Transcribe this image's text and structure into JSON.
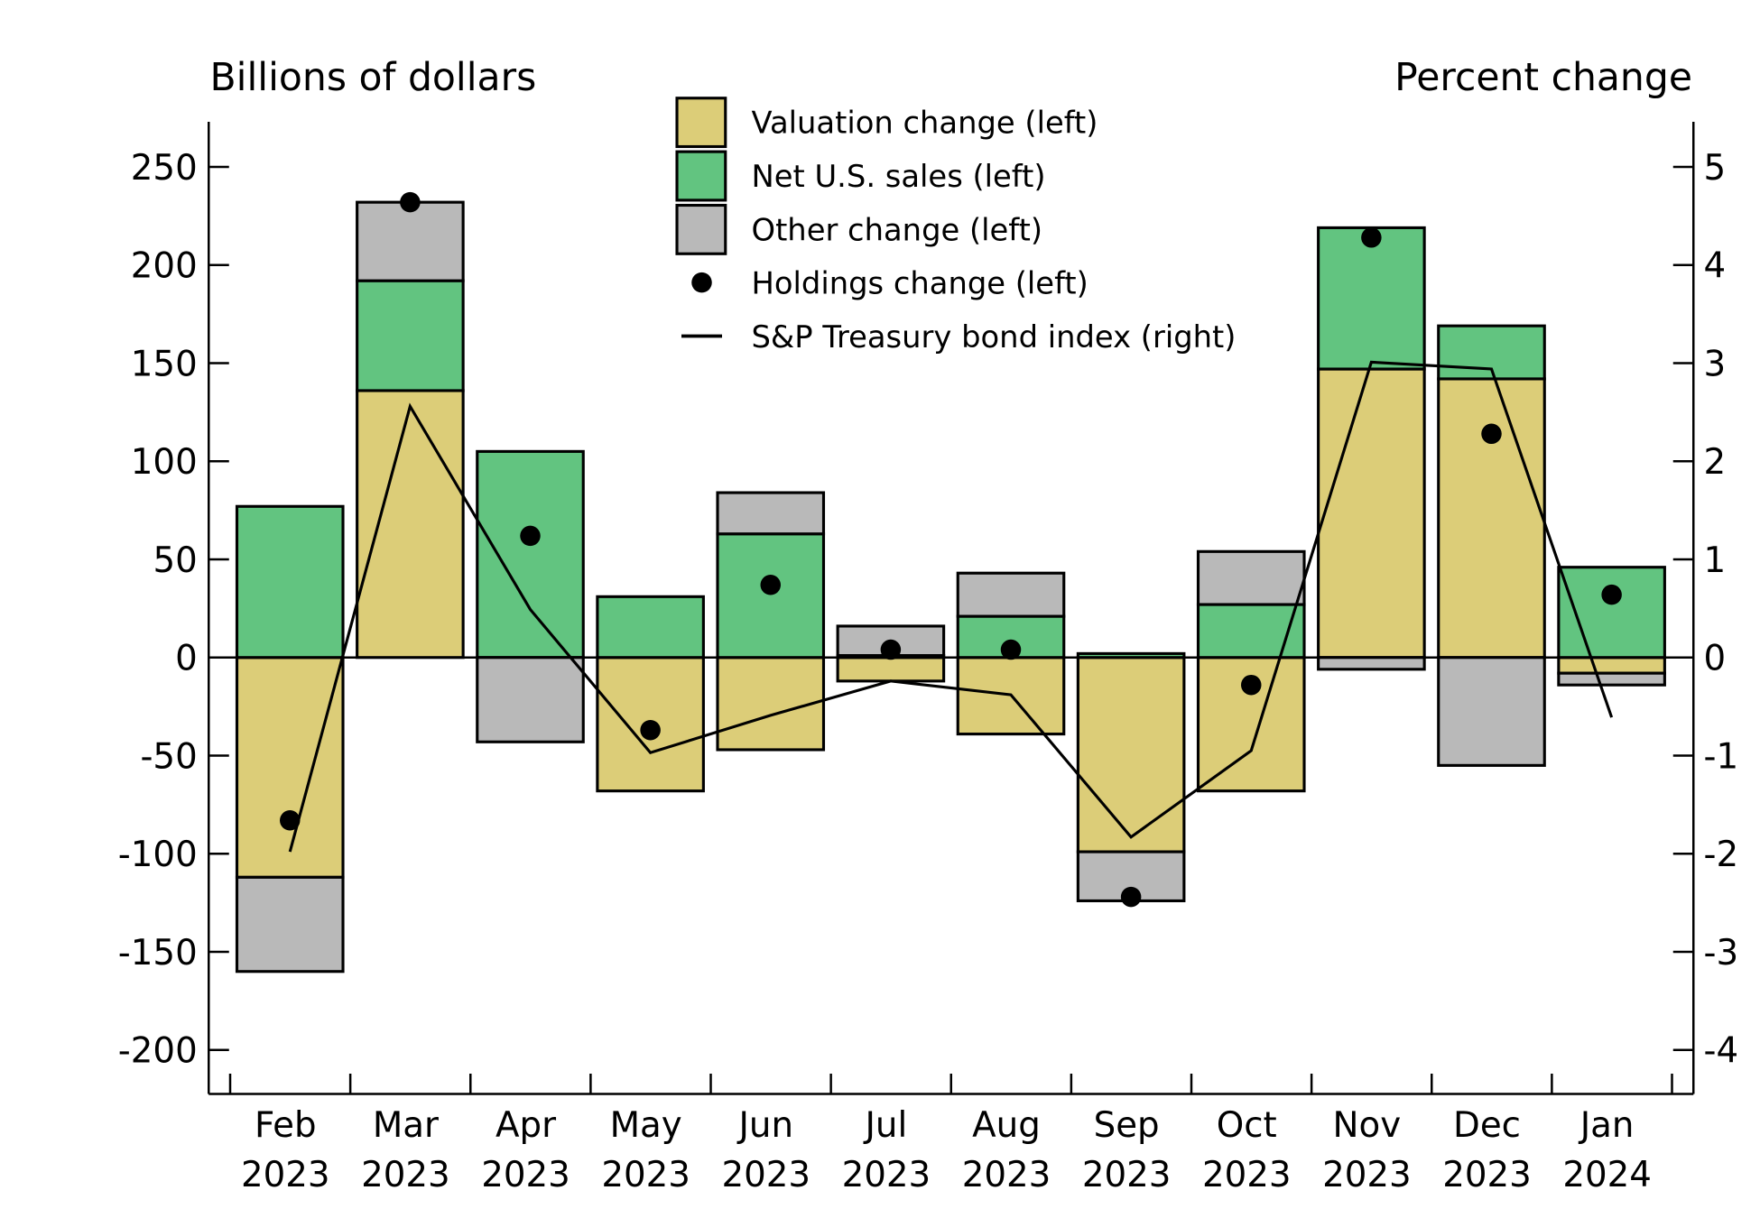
{
  "chart_data": {
    "type": "bar",
    "stacked": true,
    "left_axis_title": "Billions of dollars",
    "right_axis_title": "Percent change",
    "categories": [
      [
        "Feb",
        "2023"
      ],
      [
        "Mar",
        "2023"
      ],
      [
        "Apr",
        "2023"
      ],
      [
        "May",
        "2023"
      ],
      [
        "Jun",
        "2023"
      ],
      [
        "Jul",
        "2023"
      ],
      [
        "Aug",
        "2023"
      ],
      [
        "Sep",
        "2023"
      ],
      [
        "Oct",
        "2023"
      ],
      [
        "Nov",
        "2023"
      ],
      [
        "Dec",
        "2023"
      ],
      [
        "Jan",
        "2024"
      ]
    ],
    "ylim_left": [
      -200,
      270
    ],
    "ylim_right": [
      -4,
      5.4
    ],
    "yticks_left": [
      250,
      200,
      150,
      100,
      50,
      0,
      -50,
      -100,
      -150,
      -200
    ],
    "yticks_right": [
      5,
      4,
      3,
      2,
      1,
      0,
      -1,
      -2,
      -3,
      -4
    ],
    "grid": false,
    "legend_position": "top-center",
    "series": [
      {
        "name": "Valuation change (left)",
        "kind": "bar",
        "axis": "left",
        "color": "#dccd78",
        "values": [
          -112,
          136,
          0,
          -68,
          -47,
          -12,
          -39,
          -99,
          -68,
          147,
          142,
          -8
        ]
      },
      {
        "name": "Net U.S. sales (left)",
        "kind": "bar",
        "axis": "left",
        "color": "#62c480",
        "values": [
          77,
          56,
          105,
          31,
          63,
          1,
          21,
          2,
          27,
          72,
          27,
          46
        ]
      },
      {
        "name": "Other change (left)",
        "kind": "bar",
        "axis": "left",
        "color": "#b9b9b9",
        "values": [
          -48,
          40,
          -43,
          0,
          21,
          15,
          22,
          -25,
          27,
          -6,
          -55,
          -6
        ]
      },
      {
        "name": "Holdings change (left)",
        "kind": "scatter",
        "axis": "left",
        "color": "#000000",
        "values": [
          -83,
          232,
          62,
          -37,
          37,
          4,
          4,
          -122,
          -14,
          214,
          114,
          32
        ]
      },
      {
        "name": "S&P Treasury bond index (right)",
        "kind": "line",
        "axis": "right",
        "color": "#000000",
        "values": [
          -1.98,
          2.56,
          0.49,
          -0.97,
          -0.59,
          -0.24,
          -0.38,
          -1.83,
          -0.95,
          3.01,
          2.94,
          -0.61
        ]
      }
    ]
  }
}
